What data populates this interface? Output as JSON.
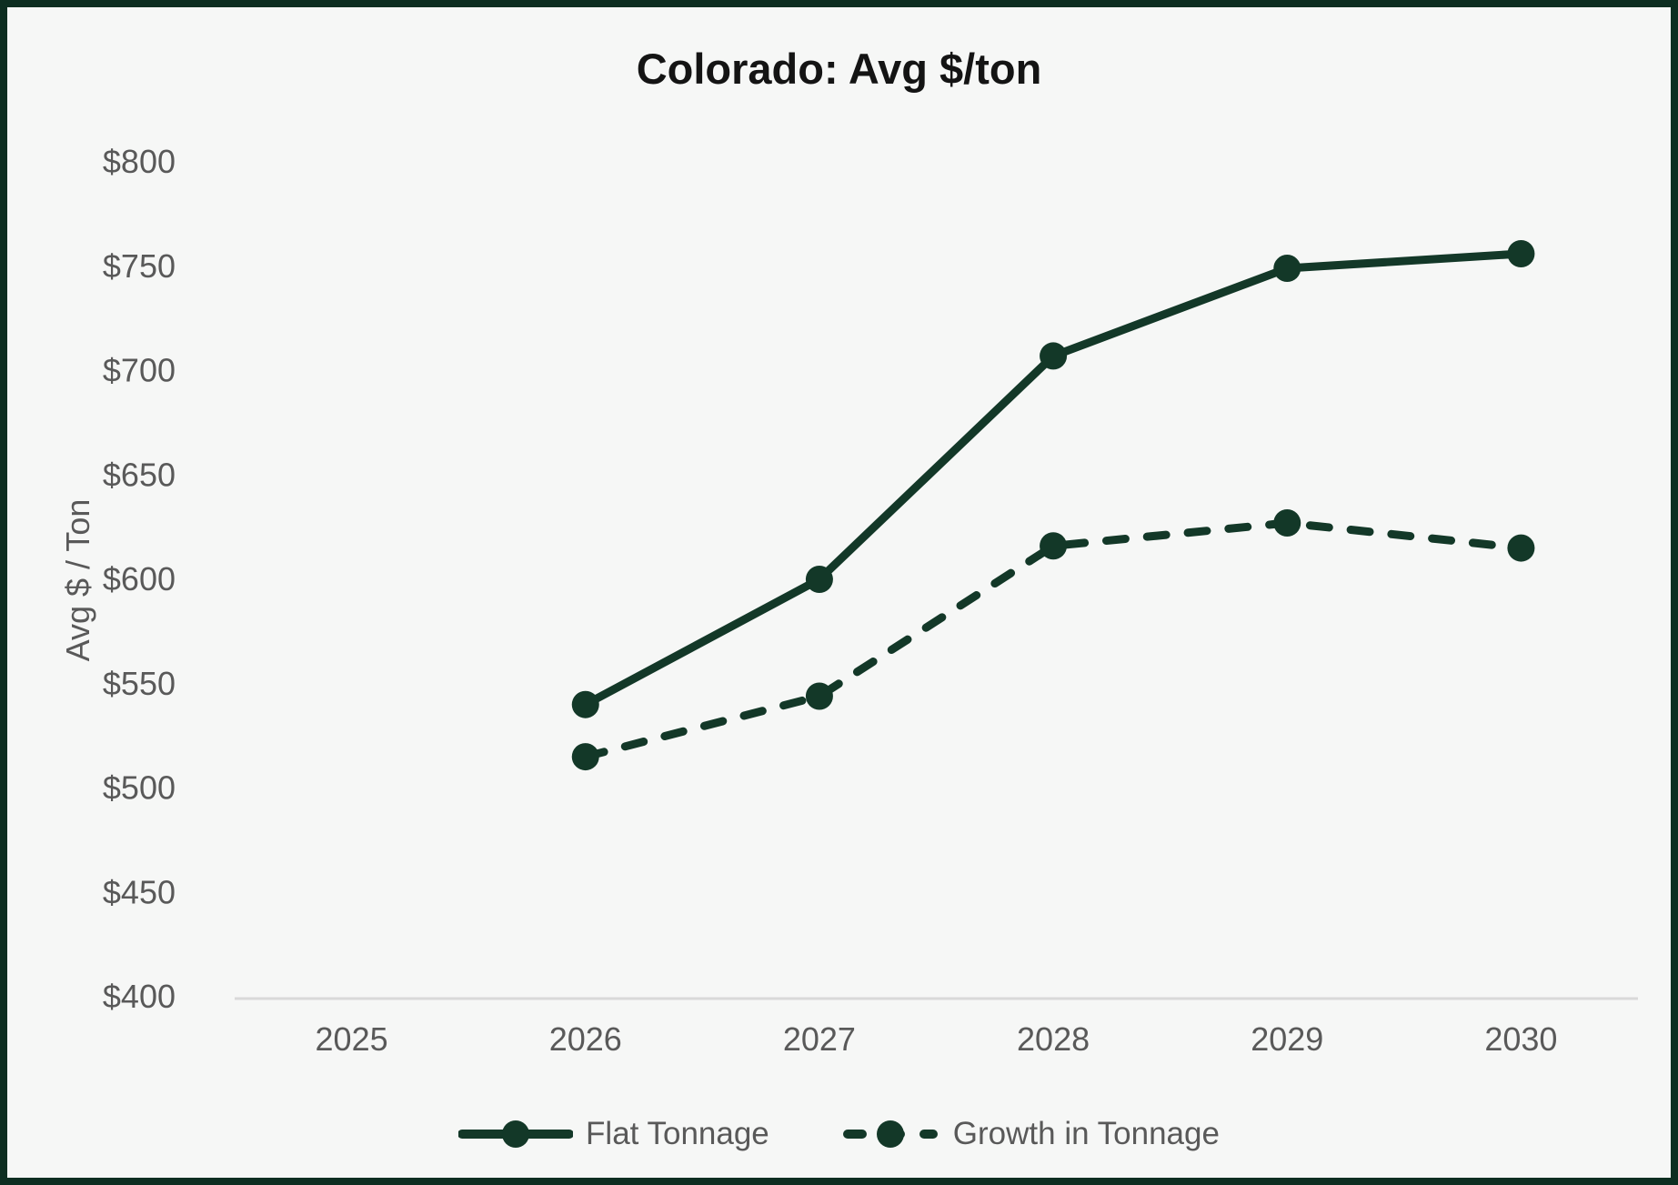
{
  "frame": {
    "border_color": "#0d2e21",
    "background_color": "#f6f7f6"
  },
  "chart_data": {
    "type": "line",
    "title": "Colorado: Avg $/ton",
    "xlabel": "",
    "ylabel": "Avg $ / Ton",
    "categories": [
      "2025",
      "2026",
      "2027",
      "2028",
      "2029",
      "2030"
    ],
    "series": [
      {
        "name": "Flat Tonnage",
        "style": "solid",
        "x": [
          "2026",
          "2027",
          "2028",
          "2029",
          "2030"
        ],
        "values": [
          540,
          600,
          707,
          749,
          756
        ]
      },
      {
        "name": "Growth in Tonnage",
        "style": "dashed",
        "x": [
          "2026",
          "2027",
          "2028",
          "2029",
          "2030"
        ],
        "values": [
          515,
          544,
          616,
          627,
          615
        ]
      }
    ],
    "ylim": [
      400,
      800
    ],
    "ytick_step": 50,
    "ytick_labels": [
      "$400",
      "$450",
      "$500",
      "$550",
      "$600",
      "$650",
      "$700",
      "$750",
      "$800"
    ],
    "xtick_labels": [
      "2025",
      "2026",
      "2027",
      "2028",
      "2029",
      "2030"
    ],
    "grid": "off",
    "legend_position": "bottom-center",
    "line_color": "#133828",
    "axis_line_color": "#d9d9d9",
    "tick_label_color": "#595959",
    "title_color": "#141414"
  }
}
